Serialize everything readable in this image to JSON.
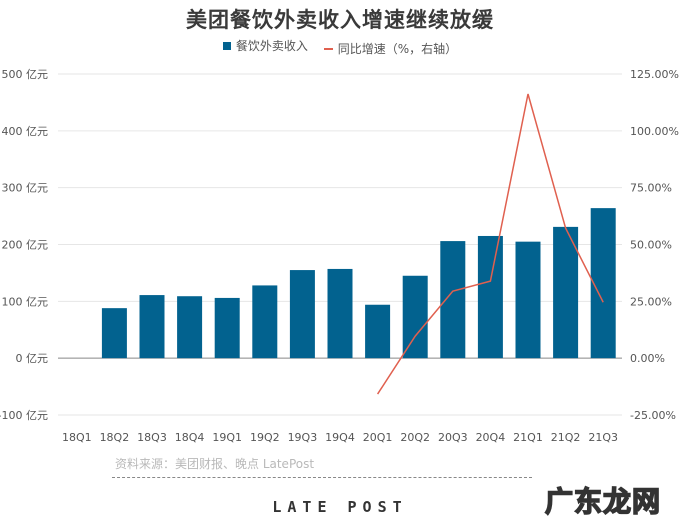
{
  "title": "美团餐饮外卖收入增速继续放缓",
  "legend": {
    "bar_label": "餐饮外卖收入",
    "line_label": "同比增速（%，右轴）"
  },
  "source": "资料来源：美团财报、晚点 LatePost",
  "brand": "LATE POST",
  "watermark": "广东龙网",
  "colors": {
    "bar": "#02628f",
    "line": "#e0604f",
    "grid": "#e6e6e6",
    "axis": "#888888"
  },
  "chart_data": {
    "type": "bar+line",
    "title": "美团餐饮外卖收入增速继续放缓",
    "categories": [
      "18Q1",
      "18Q2",
      "18Q3",
      "18Q4",
      "19Q1",
      "19Q2",
      "19Q3",
      "19Q4",
      "20Q1",
      "20Q2",
      "20Q3",
      "20Q4",
      "21Q1",
      "21Q2",
      "21Q3"
    ],
    "series": [
      {
        "name": "餐饮外卖收入",
        "type": "bar",
        "axis": "left",
        "unit": "亿元",
        "values": [
          null,
          88,
          111,
          109,
          106,
          128,
          155,
          157,
          94,
          145,
          206,
          215,
          205,
          231,
          264
        ]
      },
      {
        "name": "同比增速（%，右轴）",
        "type": "line",
        "axis": "right",
        "unit": "%",
        "values": [
          null,
          null,
          null,
          null,
          null,
          null,
          null,
          null,
          -15.8,
          9.7,
          29.5,
          33.9,
          116.2,
          57.2,
          24.6
        ]
      }
    ],
    "left_axis": {
      "ticks": [
        "500 亿元",
        "400 亿元",
        "300 亿元",
        "200 亿元",
        "100 亿元",
        "0 亿元",
        "-100 亿元"
      ],
      "ylim": [
        -100,
        500
      ]
    },
    "right_axis": {
      "ticks": [
        "125.00%",
        "100.00%",
        "75.00%",
        "50.00%",
        "25.00%",
        "0.00%",
        "-25.00%"
      ],
      "ylim": [
        -25,
        125
      ]
    },
    "grid": true,
    "legend_position": "top"
  }
}
